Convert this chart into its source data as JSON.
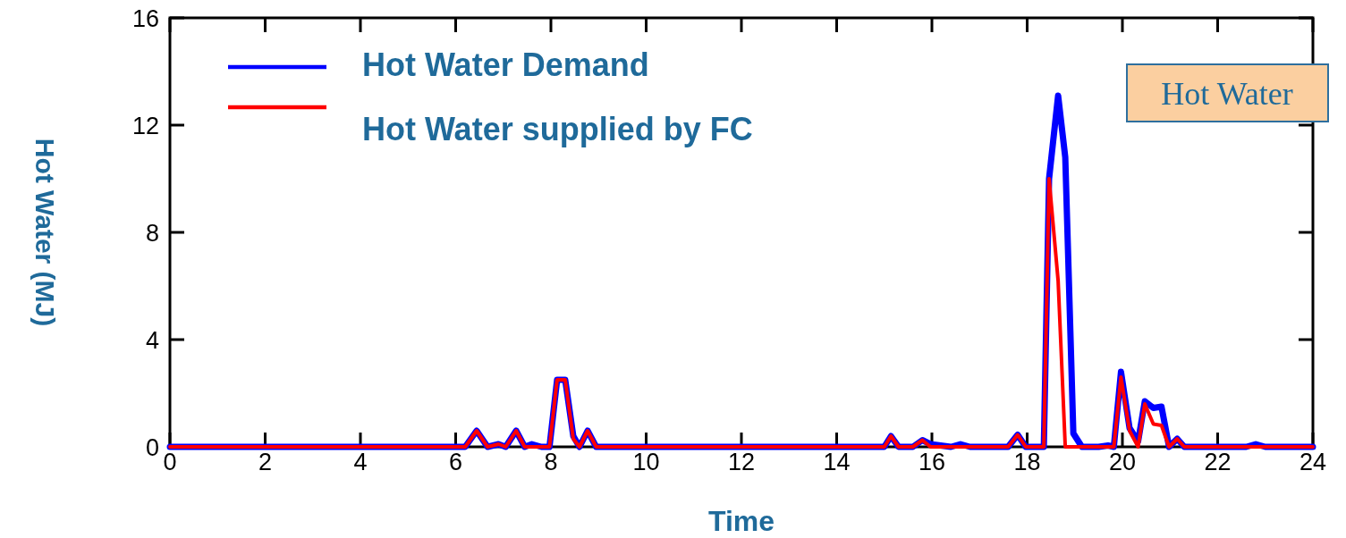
{
  "chart_data": {
    "type": "line",
    "xlabel": "Time",
    "ylabel": "Hot Water (MJ)",
    "annotations": [
      "Hot Water"
    ],
    "x": [
      0,
      6.2,
      6.44,
      6.67,
      6.9,
      7.05,
      7.27,
      7.45,
      7.6,
      7.8,
      7.97,
      8.13,
      8.3,
      8.47,
      8.6,
      8.77,
      8.95,
      15.0,
      15.14,
      15.3,
      15.6,
      15.8,
      15.97,
      16.4,
      16.6,
      16.8,
      17.6,
      17.8,
      17.97,
      18.35,
      18.46,
      18.65,
      18.8,
      18.97,
      19.15,
      19.5,
      19.7,
      19.82,
      19.97,
      20.15,
      20.33,
      20.47,
      20.65,
      20.82,
      20.98,
      21.15,
      21.3,
      22.6,
      22.8,
      23.0,
      24
    ],
    "series": [
      {
        "name": "Hot Water Demand",
        "color": "#0000ff",
        "values": [
          0,
          0,
          0.6,
          0,
          0.1,
          0,
          0.6,
          0,
          0.1,
          0,
          0,
          2.5,
          2.5,
          0.4,
          0,
          0.6,
          0,
          0,
          0.4,
          0,
          0,
          0.25,
          0.1,
          0,
          0.1,
          0,
          0,
          0.45,
          0,
          0,
          10,
          13.1,
          10.8,
          0.5,
          0,
          0,
          0.05,
          0,
          2.8,
          0.7,
          0.2,
          1.7,
          1.45,
          1.5,
          0,
          0.3,
          0,
          0,
          0.1,
          0,
          0
        ]
      },
      {
        "name": "Hot Water supplied by FC",
        "color": "#ff0000",
        "values": [
          0,
          0,
          0.6,
          0,
          0.1,
          0,
          0.6,
          0,
          0,
          0,
          0,
          2.5,
          2.5,
          0.3,
          0,
          0.6,
          0,
          0,
          0.4,
          0,
          0,
          0.25,
          0,
          0,
          0,
          0,
          0,
          0.45,
          0,
          0,
          10,
          6.2,
          0,
          0,
          0,
          0,
          0,
          0,
          2.6,
          0.6,
          0,
          1.6,
          0.85,
          0.8,
          0,
          0.3,
          0,
          0,
          0,
          0,
          0
        ]
      }
    ],
    "xlim": [
      0,
      24
    ],
    "xticks": [
      0,
      2,
      4,
      6,
      8,
      10,
      12,
      14,
      16,
      18,
      20,
      22,
      24
    ],
    "ylim": [
      0,
      16
    ],
    "yticks": [
      0,
      4,
      8,
      12,
      16
    ],
    "grid": false,
    "legend": "top left",
    "marker": "none",
    "line_style": "solid"
  }
}
